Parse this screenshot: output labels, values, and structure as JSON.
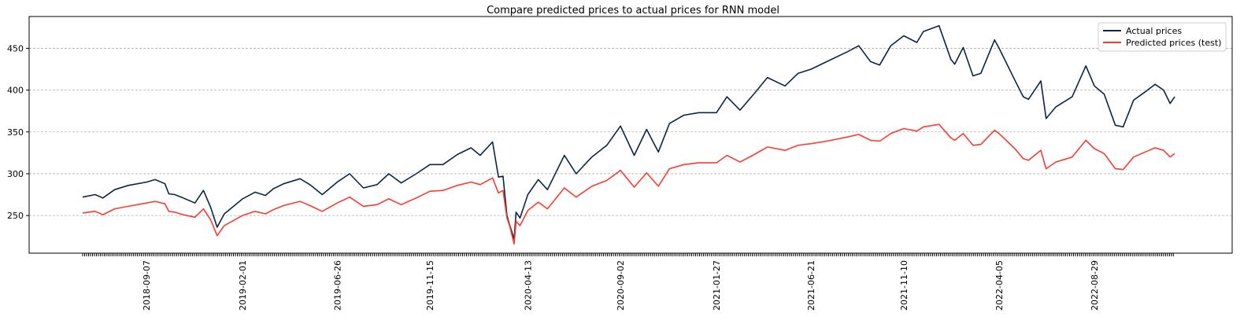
{
  "chart_data": {
    "type": "line",
    "title": "Compare predicted prices to actual prices for RNN model",
    "xlabel": "",
    "ylabel": "",
    "x_range": [
      "2018-06-01",
      "2022-12-30"
    ],
    "ylim": [
      205,
      488
    ],
    "y_ticks": [
      250,
      300,
      350,
      400,
      450
    ],
    "x_tick_labels": [
      "2018-09-07",
      "2019-02-01",
      "2019-06-26",
      "2019-11-15",
      "2020-04-13",
      "2020-09-02",
      "2021-01-27",
      "2021-06-21",
      "2021-11-10",
      "2022-04-05",
      "2022-08-29"
    ],
    "grid": "y dashed",
    "legend": "top-right",
    "series": [
      {
        "name": "Actual prices",
        "color": "#0b2545",
        "points": [
          [
            "2018-06-01",
            272
          ],
          [
            "2018-06-20",
            275
          ],
          [
            "2018-07-02",
            271
          ],
          [
            "2018-07-20",
            281
          ],
          [
            "2018-08-10",
            286
          ],
          [
            "2018-09-07",
            290
          ],
          [
            "2018-09-20",
            293
          ],
          [
            "2018-10-05",
            288
          ],
          [
            "2018-10-11",
            276
          ],
          [
            "2018-10-20",
            275
          ],
          [
            "2018-11-02",
            271
          ],
          [
            "2018-11-20",
            265
          ],
          [
            "2018-12-03",
            280
          ],
          [
            "2018-12-14",
            260
          ],
          [
            "2018-12-24",
            236
          ],
          [
            "2019-01-04",
            252
          ],
          [
            "2019-02-01",
            270
          ],
          [
            "2019-02-20",
            278
          ],
          [
            "2019-03-08",
            274
          ],
          [
            "2019-03-20",
            282
          ],
          [
            "2019-04-05",
            288
          ],
          [
            "2019-04-30",
            294
          ],
          [
            "2019-05-15",
            287
          ],
          [
            "2019-06-03",
            275
          ],
          [
            "2019-06-26",
            290
          ],
          [
            "2019-07-15",
            300
          ],
          [
            "2019-08-05",
            283
          ],
          [
            "2019-08-26",
            287
          ],
          [
            "2019-09-13",
            300
          ],
          [
            "2019-10-02",
            289
          ],
          [
            "2019-10-25",
            300
          ],
          [
            "2019-11-15",
            311
          ],
          [
            "2019-12-05",
            311
          ],
          [
            "2019-12-27",
            323
          ],
          [
            "2020-01-17",
            331
          ],
          [
            "2020-01-31",
            322
          ],
          [
            "2020-02-19",
            338
          ],
          [
            "2020-02-28",
            296
          ],
          [
            "2020-03-06",
            297
          ],
          [
            "2020-03-12",
            250
          ],
          [
            "2020-03-16",
            239
          ],
          [
            "2020-03-23",
            222
          ],
          [
            "2020-03-26",
            254
          ],
          [
            "2020-04-01",
            247
          ],
          [
            "2020-04-13",
            275
          ],
          [
            "2020-04-29",
            293
          ],
          [
            "2020-05-13",
            281
          ],
          [
            "2020-06-08",
            322
          ],
          [
            "2020-06-26",
            300
          ],
          [
            "2020-07-20",
            320
          ],
          [
            "2020-08-12",
            334
          ],
          [
            "2020-09-02",
            357
          ],
          [
            "2020-09-23",
            322
          ],
          [
            "2020-10-12",
            353
          ],
          [
            "2020-10-30",
            326
          ],
          [
            "2020-11-16",
            360
          ],
          [
            "2020-12-08",
            370
          ],
          [
            "2020-12-31",
            373
          ],
          [
            "2021-01-27",
            373
          ],
          [
            "2021-02-12",
            392
          ],
          [
            "2021-03-04",
            376
          ],
          [
            "2021-03-26",
            396
          ],
          [
            "2021-04-15",
            415
          ],
          [
            "2021-05-12",
            405
          ],
          [
            "2021-06-01",
            420
          ],
          [
            "2021-06-21",
            425
          ],
          [
            "2021-07-15",
            434
          ],
          [
            "2021-08-16",
            446
          ],
          [
            "2021-09-02",
            453
          ],
          [
            "2021-09-20",
            434
          ],
          [
            "2021-10-04",
            430
          ],
          [
            "2021-10-21",
            453
          ],
          [
            "2021-11-10",
            465
          ],
          [
            "2021-11-30",
            457
          ],
          [
            "2021-12-10",
            470
          ],
          [
            "2022-01-03",
            477
          ],
          [
            "2022-01-21",
            437
          ],
          [
            "2022-01-27",
            431
          ],
          [
            "2022-02-09",
            451
          ],
          [
            "2022-02-24",
            417
          ],
          [
            "2022-03-08",
            420
          ],
          [
            "2022-03-29",
            460
          ],
          [
            "2022-04-05",
            450
          ],
          [
            "2022-04-29",
            412
          ],
          [
            "2022-05-12",
            392
          ],
          [
            "2022-05-20",
            389
          ],
          [
            "2022-06-08",
            411
          ],
          [
            "2022-06-16",
            366
          ],
          [
            "2022-07-01",
            380
          ],
          [
            "2022-07-26",
            392
          ],
          [
            "2022-08-16",
            429
          ],
          [
            "2022-08-29",
            405
          ],
          [
            "2022-09-13",
            395
          ],
          [
            "2022-09-30",
            358
          ],
          [
            "2022-10-12",
            356
          ],
          [
            "2022-10-28",
            388
          ],
          [
            "2022-11-15",
            398
          ],
          [
            "2022-11-30",
            407
          ],
          [
            "2022-12-13",
            400
          ],
          [
            "2022-12-23",
            384
          ],
          [
            "2022-12-30",
            392
          ]
        ]
      },
      {
        "name": "Predicted prices (test)",
        "color": "#ff3a30",
        "points": [
          [
            "2018-06-01",
            253
          ],
          [
            "2018-06-20",
            255
          ],
          [
            "2018-07-02",
            251
          ],
          [
            "2018-07-20",
            258
          ],
          [
            "2018-08-10",
            261
          ],
          [
            "2018-09-07",
            265
          ],
          [
            "2018-09-20",
            267
          ],
          [
            "2018-10-05",
            264
          ],
          [
            "2018-10-11",
            255
          ],
          [
            "2018-10-20",
            254
          ],
          [
            "2018-11-02",
            251
          ],
          [
            "2018-11-20",
            248
          ],
          [
            "2018-12-03",
            258
          ],
          [
            "2018-12-14",
            245
          ],
          [
            "2018-12-24",
            226
          ],
          [
            "2019-01-04",
            238
          ],
          [
            "2019-02-01",
            250
          ],
          [
            "2019-02-20",
            255
          ],
          [
            "2019-03-08",
            252
          ],
          [
            "2019-03-20",
            257
          ],
          [
            "2019-04-05",
            262
          ],
          [
            "2019-04-30",
            267
          ],
          [
            "2019-05-15",
            262
          ],
          [
            "2019-06-03",
            255
          ],
          [
            "2019-06-26",
            265
          ],
          [
            "2019-07-15",
            272
          ],
          [
            "2019-08-05",
            261
          ],
          [
            "2019-08-26",
            263
          ],
          [
            "2019-09-13",
            270
          ],
          [
            "2019-10-02",
            263
          ],
          [
            "2019-10-25",
            271
          ],
          [
            "2019-11-15",
            279
          ],
          [
            "2019-12-05",
            280
          ],
          [
            "2019-12-27",
            286
          ],
          [
            "2020-01-17",
            290
          ],
          [
            "2020-01-31",
            287
          ],
          [
            "2020-02-19",
            295
          ],
          [
            "2020-02-28",
            277
          ],
          [
            "2020-03-06",
            280
          ],
          [
            "2020-03-12",
            247
          ],
          [
            "2020-03-16",
            238
          ],
          [
            "2020-03-23",
            216
          ],
          [
            "2020-03-26",
            243
          ],
          [
            "2020-04-01",
            238
          ],
          [
            "2020-04-13",
            256
          ],
          [
            "2020-04-29",
            266
          ],
          [
            "2020-05-13",
            258
          ],
          [
            "2020-06-08",
            283
          ],
          [
            "2020-06-26",
            272
          ],
          [
            "2020-07-20",
            285
          ],
          [
            "2020-08-12",
            292
          ],
          [
            "2020-09-02",
            304
          ],
          [
            "2020-09-23",
            284
          ],
          [
            "2020-10-12",
            301
          ],
          [
            "2020-10-30",
            285
          ],
          [
            "2020-11-16",
            306
          ],
          [
            "2020-12-08",
            311
          ],
          [
            "2020-12-31",
            313
          ],
          [
            "2021-01-27",
            313
          ],
          [
            "2021-02-12",
            322
          ],
          [
            "2021-03-04",
            314
          ],
          [
            "2021-03-26",
            323
          ],
          [
            "2021-04-15",
            332
          ],
          [
            "2021-05-12",
            328
          ],
          [
            "2021-06-01",
            334
          ],
          [
            "2021-06-21",
            336
          ],
          [
            "2021-07-15",
            339
          ],
          [
            "2021-08-16",
            344
          ],
          [
            "2021-09-02",
            347
          ],
          [
            "2021-09-20",
            340
          ],
          [
            "2021-10-04",
            339
          ],
          [
            "2021-10-21",
            348
          ],
          [
            "2021-11-10",
            354
          ],
          [
            "2021-11-30",
            351
          ],
          [
            "2021-12-10",
            356
          ],
          [
            "2022-01-03",
            359
          ],
          [
            "2022-01-21",
            343
          ],
          [
            "2022-01-27",
            340
          ],
          [
            "2022-02-09",
            348
          ],
          [
            "2022-02-24",
            334
          ],
          [
            "2022-03-08",
            335
          ],
          [
            "2022-03-29",
            352
          ],
          [
            "2022-04-05",
            348
          ],
          [
            "2022-04-29",
            330
          ],
          [
            "2022-05-12",
            318
          ],
          [
            "2022-05-20",
            316
          ],
          [
            "2022-06-08",
            328
          ],
          [
            "2022-06-16",
            306
          ],
          [
            "2022-07-01",
            314
          ],
          [
            "2022-07-26",
            320
          ],
          [
            "2022-08-16",
            340
          ],
          [
            "2022-08-29",
            330
          ],
          [
            "2022-09-13",
            324
          ],
          [
            "2022-09-30",
            306
          ],
          [
            "2022-10-12",
            305
          ],
          [
            "2022-10-28",
            320
          ],
          [
            "2022-11-15",
            326
          ],
          [
            "2022-11-30",
            331
          ],
          [
            "2022-12-13",
            328
          ],
          [
            "2022-12-23",
            320
          ],
          [
            "2022-12-30",
            324
          ]
        ]
      }
    ]
  }
}
